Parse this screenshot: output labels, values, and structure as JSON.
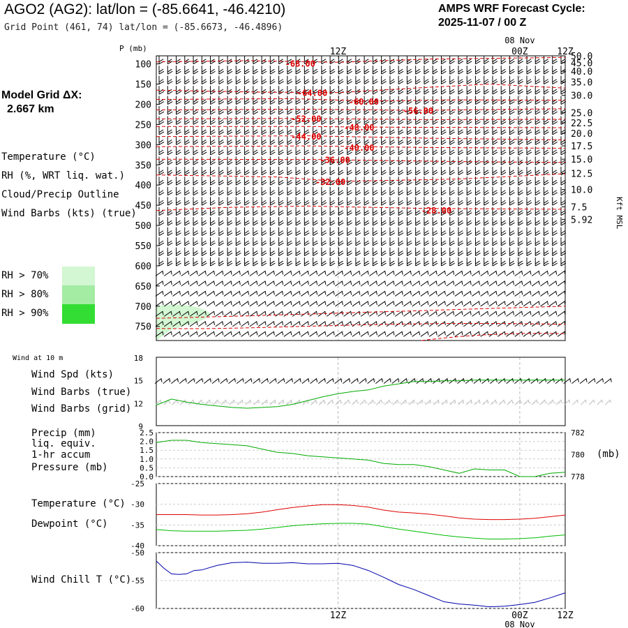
{
  "header": {
    "title": "AGO2 (AG2):  lat/lon = (-85.6641, -46.4210)",
    "subtitle": "Grid Point (461, 74) lat/lon = (-85.6673, -46.4896)",
    "cycle_line1": "AMPS WRF Forecast Cycle:",
    "cycle_line2": "2025-11-07 / 00  Z"
  },
  "model": {
    "grid_label": "Model Grid ΔX:",
    "grid_value": "2.667 km"
  },
  "legend": {
    "temperature": "Temperature (°C)",
    "rh": "RH (%, WRT liq. wat.)",
    "cloud": "Cloud/Precip Outline",
    "wind": "Wind Barbs (kts) (true)"
  },
  "rh_key": [
    {
      "label": "RH > 70%",
      "color": "#d2f7d2"
    },
    {
      "label": "RH > 80%",
      "color": "#a4eba4"
    },
    {
      "label": "RH > 90%",
      "color": "#33dd33"
    }
  ],
  "colors": {
    "temperature": "#dd0000",
    "rh": "#00aa00",
    "cloud": "#7733aa",
    "dewpoint": "#00bb00",
    "windchill": "#0000aa",
    "grid_barbs": "#bbbbbb"
  },
  "time_axis": {
    "top_labels": [
      "12Z",
      "00Z",
      "12Z"
    ],
    "date_label": "08 Nov"
  },
  "chart_data": [
    {
      "type": "line",
      "title": "Time-height cross-section",
      "ylabel": "P (mb)",
      "y2label": "Kft MSL",
      "pressure_ticks": [
        100,
        150,
        200,
        250,
        300,
        350,
        400,
        450,
        500,
        550,
        600,
        650,
        700,
        750
      ],
      "height_ticks": [
        "50.0",
        "45.0",
        "40.0",
        "35.0",
        "30.0",
        "25.0",
        "22.5",
        "20.0",
        "17.5",
        "15.0",
        "12.5",
        "10.0",
        "7.5",
        "5.92"
      ],
      "height_tick_pressures": [
        80,
        97,
        118,
        145,
        178,
        221,
        246,
        272,
        303,
        336,
        371,
        411,
        454,
        485
      ],
      "isotherm_labels": [
        "-68.00",
        "-64.00",
        "-60.00",
        "-56.00",
        "-52.00",
        "-48.00",
        "-44.00",
        "-40.00",
        "-36.00",
        "-32.00",
        "-28.00"
      ],
      "isotherm_label_positions": [
        [
          9.5,
          98
        ],
        [
          10.3,
          171
        ],
        [
          13.7,
          192
        ],
        [
          17.3,
          215
        ],
        [
          9.9,
          235
        ],
        [
          13.4,
          256
        ],
        [
          9.9,
          279
        ],
        [
          13.4,
          306
        ],
        [
          11.8,
          337
        ],
        [
          11.5,
          391
        ],
        [
          18.5,
          462
        ]
      ],
      "isotherm_lines": [
        {
          "value": -68,
          "points": [
            [
              0,
              95
            ],
            [
              6,
              92
            ],
            [
              12,
              96
            ],
            [
              18,
              88
            ],
            [
              27,
              84
            ]
          ]
        },
        {
          "value": -64,
          "points": [
            [
              0,
              165
            ],
            [
              7,
              170
            ],
            [
              12,
              171
            ],
            [
              18,
              158
            ],
            [
              22,
              150
            ],
            [
              27,
              160
            ]
          ]
        },
        {
          "value": -60,
          "points": [
            [
              0,
              188
            ],
            [
              9,
              186
            ],
            [
              14,
              192
            ],
            [
              20,
              189
            ],
            [
              27,
              190
            ]
          ]
        },
        {
          "value": -56,
          "points": [
            [
              0,
              214
            ],
            [
              10,
              212
            ],
            [
              17,
              215
            ],
            [
              27,
              211
            ]
          ]
        },
        {
          "value": -52,
          "points": [
            [
              0,
              236
            ],
            [
              9,
              235
            ],
            [
              18,
              238
            ],
            [
              27,
              237
            ]
          ]
        },
        {
          "value": -48,
          "points": [
            [
              0,
              255
            ],
            [
              10,
              255
            ],
            [
              16,
              257
            ],
            [
              27,
              258
            ]
          ]
        },
        {
          "value": -44,
          "points": [
            [
              0,
              280
            ],
            [
              10,
              278
            ],
            [
              18,
              284
            ],
            [
              27,
              288
            ]
          ]
        },
        {
          "value": -40,
          "points": [
            [
              0,
              305
            ],
            [
              10,
              303
            ],
            [
              18,
              307
            ],
            [
              27,
              309
            ]
          ]
        },
        {
          "value": -36,
          "points": [
            [
              0,
              336
            ],
            [
              11,
              337
            ],
            [
              20,
              342
            ],
            [
              27,
              344
            ]
          ]
        },
        {
          "value": -32,
          "points": [
            [
              0,
              375
            ],
            [
              8,
              380
            ],
            [
              12,
              391
            ],
            [
              20,
              385
            ],
            [
              27,
              372
            ]
          ]
        },
        {
          "value": -28,
          "points": [
            [
              0,
              463
            ],
            [
              5,
              455
            ],
            [
              10,
              452
            ],
            [
              18,
              458
            ],
            [
              27,
              460
            ]
          ]
        }
      ],
      "rh70_region": "lower-left, 700-785 mb, first ~4 hours"
    },
    {
      "type": "line",
      "title": "Wind at 10 m",
      "ylabel": "Wind Spd (kts)",
      "ylim": [
        9,
        18
      ],
      "y_ticks": [
        9,
        12,
        15,
        18
      ],
      "x": [
        0,
        1,
        2,
        3,
        4,
        5,
        6,
        7,
        8,
        9,
        10,
        11,
        12,
        13,
        14,
        15,
        16,
        17,
        18,
        19,
        20,
        21,
        22,
        23,
        24,
        25,
        26,
        27
      ],
      "series": [
        {
          "name": "Wind Spd (kts)",
          "values": [
            11.7,
            12.5,
            12.1,
            11.8,
            11.6,
            11.4,
            11.3,
            11.4,
            11.5,
            11.8,
            12.3,
            12.8,
            13.2,
            13.5,
            13.7,
            14.2,
            14.5,
            14.8,
            14.8,
            14.9,
            14.9,
            15.0,
            15.0,
            15.0,
            15.0,
            15.0,
            15.0,
            15.0
          ]
        }
      ],
      "labels": [
        "Wind Spd (kts)",
        "Wind Barbs (true)",
        "Wind Barbs (grid)"
      ]
    },
    {
      "type": "line",
      "title": "Precip / Pressure",
      "ylabel": "Precip (mm)",
      "ylim": [
        0,
        2.5
      ],
      "y_ticks": [
        "0.0",
        "0.5",
        "1.0",
        "1.5",
        "2.0",
        "2.5"
      ],
      "y2label": "(mb)",
      "y2lim": [
        778,
        782
      ],
      "y2_ticks": [
        "778",
        "780",
        "782"
      ],
      "x": [
        0,
        1,
        2,
        3,
        4,
        5,
        6,
        7,
        8,
        9,
        10,
        11,
        12,
        13,
        14,
        15,
        16,
        17,
        18,
        19,
        20,
        21,
        22,
        23,
        24,
        25,
        26,
        27
      ],
      "series": [
        {
          "name": "Pressure (mb)",
          "axis": "right",
          "values": [
            781.1,
            781.3,
            781.3,
            781.1,
            781.0,
            780.9,
            780.8,
            780.5,
            780.2,
            780.1,
            779.9,
            779.8,
            779.7,
            779.6,
            779.5,
            779.2,
            779.1,
            779.1,
            778.9,
            778.6,
            778.3,
            778.7,
            778.6,
            778.6,
            778.0,
            778.0,
            778.3,
            778.4
          ]
        }
      ],
      "labels": [
        "Precip (mm)",
        "liq. equiv.",
        "1-hr accum",
        "Pressure (mb)"
      ]
    },
    {
      "type": "line",
      "title": "Temperature / Dewpoint",
      "ylim": [
        -40,
        -25
      ],
      "y_ticks": [
        "-25",
        "-30",
        "-35",
        "-40"
      ],
      "x": [
        0,
        1,
        2,
        3,
        4,
        5,
        6,
        7,
        8,
        9,
        10,
        11,
        12,
        13,
        14,
        15,
        16,
        17,
        18,
        19,
        20,
        21,
        22,
        23,
        24,
        25,
        26,
        27
      ],
      "series": [
        {
          "name": "Temperature (°C)",
          "values": [
            -32.5,
            -32.5,
            -32.5,
            -32.6,
            -32.6,
            -32.5,
            -32.3,
            -31.9,
            -31.3,
            -30.8,
            -30.4,
            -30.1,
            -30.1,
            -30.3,
            -30.7,
            -31.4,
            -31.9,
            -32.1,
            -32.4,
            -32.8,
            -33.3,
            -33.6,
            -33.7,
            -33.7,
            -33.6,
            -33.4,
            -33.0,
            -32.6
          ]
        },
        {
          "name": "Dewpoint (°C)",
          "values": [
            -36.1,
            -36.4,
            -36.5,
            -36.5,
            -36.5,
            -36.4,
            -36.3,
            -36.0,
            -35.6,
            -35.2,
            -34.9,
            -34.7,
            -34.6,
            -34.6,
            -34.8,
            -35.4,
            -36.0,
            -36.5,
            -37.0,
            -37.5,
            -37.9,
            -38.2,
            -38.4,
            -38.4,
            -38.3,
            -38.1,
            -37.7,
            -37.4
          ]
        }
      ],
      "labels": [
        "Temperature (°C)",
        "Dewpoint (°C)"
      ]
    },
    {
      "type": "line",
      "title": "Wind Chill",
      "ylim": [
        -60,
        -50
      ],
      "y_ticks": [
        "-50",
        "-55",
        "-60"
      ],
      "x": [
        0,
        0.5,
        1,
        1.5,
        2,
        2.5,
        3,
        4,
        5,
        6,
        7,
        8,
        9,
        10,
        11,
        12,
        13,
        14,
        15,
        16,
        17,
        18,
        19,
        20,
        21,
        22,
        23,
        24,
        25,
        26,
        27
      ],
      "series": [
        {
          "name": "Wind Chill T (°C)",
          "values": [
            -51.5,
            -52.8,
            -53.8,
            -53.9,
            -53.8,
            -53.2,
            -53.1,
            -52.3,
            -51.8,
            -51.7,
            -51.9,
            -51.9,
            -51.8,
            -52.0,
            -52.0,
            -51.9,
            -52.3,
            -53.2,
            -54.4,
            -55.7,
            -56.6,
            -57.7,
            -58.8,
            -59.2,
            -59.4,
            -59.7,
            -59.6,
            -59.3,
            -58.9,
            -58.1,
            -57.2
          ]
        }
      ],
      "labels": [
        "Wind Chill T (°C)"
      ]
    }
  ],
  "panel4": {
    "title": "Wind at 10 m"
  },
  "bottom_axis": {
    "labels": [
      "12Z",
      "00Z",
      "12Z"
    ],
    "date_label": "08 Nov"
  }
}
